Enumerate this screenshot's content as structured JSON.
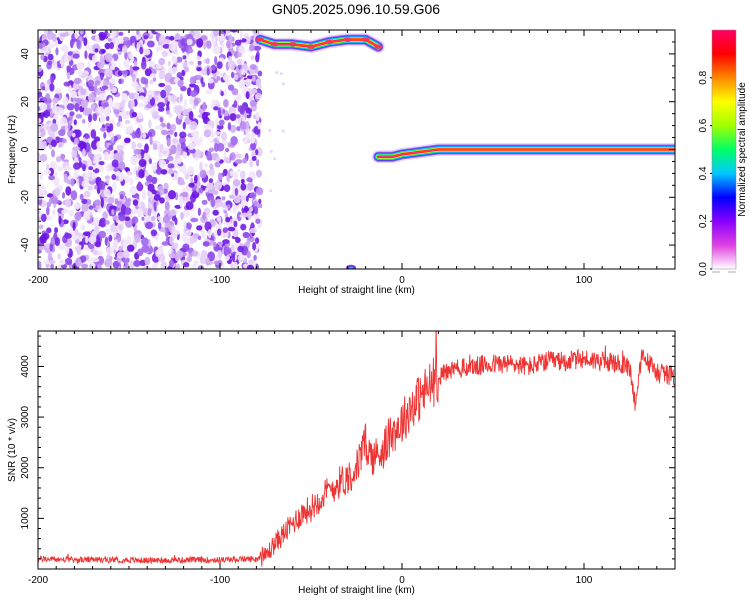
{
  "title": "GN05.2025.096.10.59.G06",
  "chart_data": [
    {
      "type": "heatmap",
      "xlabel": "Height of straight line (km)",
      "ylabel": "Frequency (Hz)",
      "xlim": [
        -200,
        150
      ],
      "ylim": [
        -50,
        50
      ],
      "x_ticks": [
        -200,
        -100,
        0,
        100
      ],
      "y_ticks": [
        -40,
        -20,
        0,
        20,
        40
      ],
      "noise_region": {
        "x": [
          -200,
          -78
        ],
        "y": [
          -50,
          50
        ]
      },
      "tracks": [
        {
          "name": "",
          "points": [
            [
              -78,
              46
            ],
            [
              -70,
              44
            ],
            [
              -60,
              44
            ],
            [
              -50,
              43
            ],
            [
              -40,
              45
            ],
            [
              -30,
              46
            ],
            [
              -20,
              46
            ],
            [
              -13,
              43
            ]
          ]
        },
        {
          "name": "",
          "points": [
            [
              -13,
              -3
            ],
            [
              -5,
              -3
            ],
            [
              0,
              -2
            ],
            [
              10,
              -1
            ],
            [
              20,
              0
            ],
            [
              60,
              0
            ],
            [
              100,
              0
            ],
            [
              150,
              0
            ]
          ]
        }
      ],
      "colorbar": {
        "label": "Normalized spectral amplitude",
        "range": [
          0,
          1
        ],
        "ticks": [
          "0.0",
          "0.2",
          "0.4",
          "0.6",
          "0.8"
        ],
        "colors": [
          "#ffffff",
          "#e040e0",
          "#8800ff",
          "#0000ff",
          "#00c8ff",
          "#00ff66",
          "#a0ff00",
          "#ffff00",
          "#ff8800",
          "#ff0000",
          "#ff0066"
        ]
      }
    },
    {
      "type": "line",
      "xlabel": "Height of straight line (km)",
      "ylabel": "SNR (10 * v/v)",
      "xlim": [
        -200,
        150
      ],
      "ylim": [
        0,
        4700
      ],
      "x_ticks": [
        -200,
        -100,
        0,
        100
      ],
      "y_ticks": [
        1000,
        2000,
        3000,
        4000
      ],
      "color": "#ee3333",
      "series": [
        {
          "name": "",
          "x": [
            -200,
            -180,
            -160,
            -140,
            -120,
            -100,
            -90,
            -80,
            -75,
            -70,
            -65,
            -60,
            -55,
            -50,
            -45,
            -40,
            -35,
            -30,
            -25,
            -20,
            -18,
            -15,
            -10,
            -5,
            0,
            5,
            10,
            15,
            20,
            25,
            30,
            40,
            50,
            60,
            70,
            80,
            90,
            100,
            110,
            118,
            125,
            128,
            132,
            140,
            150
          ],
          "y": [
            200,
            180,
            180,
            170,
            180,
            180,
            190,
            200,
            250,
            500,
            700,
            900,
            1100,
            1200,
            1400,
            1550,
            1700,
            1800,
            2000,
            2500,
            2300,
            2200,
            2400,
            2700,
            2900,
            3200,
            3400,
            3600,
            3800,
            3900,
            3950,
            4000,
            4050,
            4050,
            4000,
            4100,
            4100,
            4150,
            4100,
            4050,
            4000,
            3300,
            4200,
            3900,
            3800
          ]
        }
      ]
    }
  ]
}
